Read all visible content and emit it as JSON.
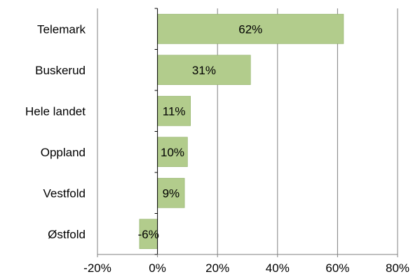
{
  "chart_data": {
    "type": "bar",
    "orientation": "horizontal",
    "categories": [
      "Telemark",
      "Buskerud",
      "Hele landet",
      "Oppland",
      "Vestfold",
      "Østfold"
    ],
    "values": [
      62,
      31,
      11,
      10,
      9,
      -6
    ],
    "data_labels": [
      "62%",
      "31%",
      "11%",
      "10%",
      "9%",
      "-6%"
    ],
    "x_ticks": [
      -20,
      0,
      20,
      40,
      60,
      80
    ],
    "x_tick_labels": [
      "-20%",
      "0%",
      "20%",
      "40%",
      "60%",
      "80%"
    ],
    "xlim": [
      -20,
      80
    ],
    "title": "",
    "xlabel": "",
    "ylabel": "",
    "grid": "vertical",
    "legend": "none",
    "bar_color": "#b2cc8c",
    "bar_edge_color": "#8fb066",
    "grid_color": "#808080",
    "axis_color": "#000000"
  }
}
